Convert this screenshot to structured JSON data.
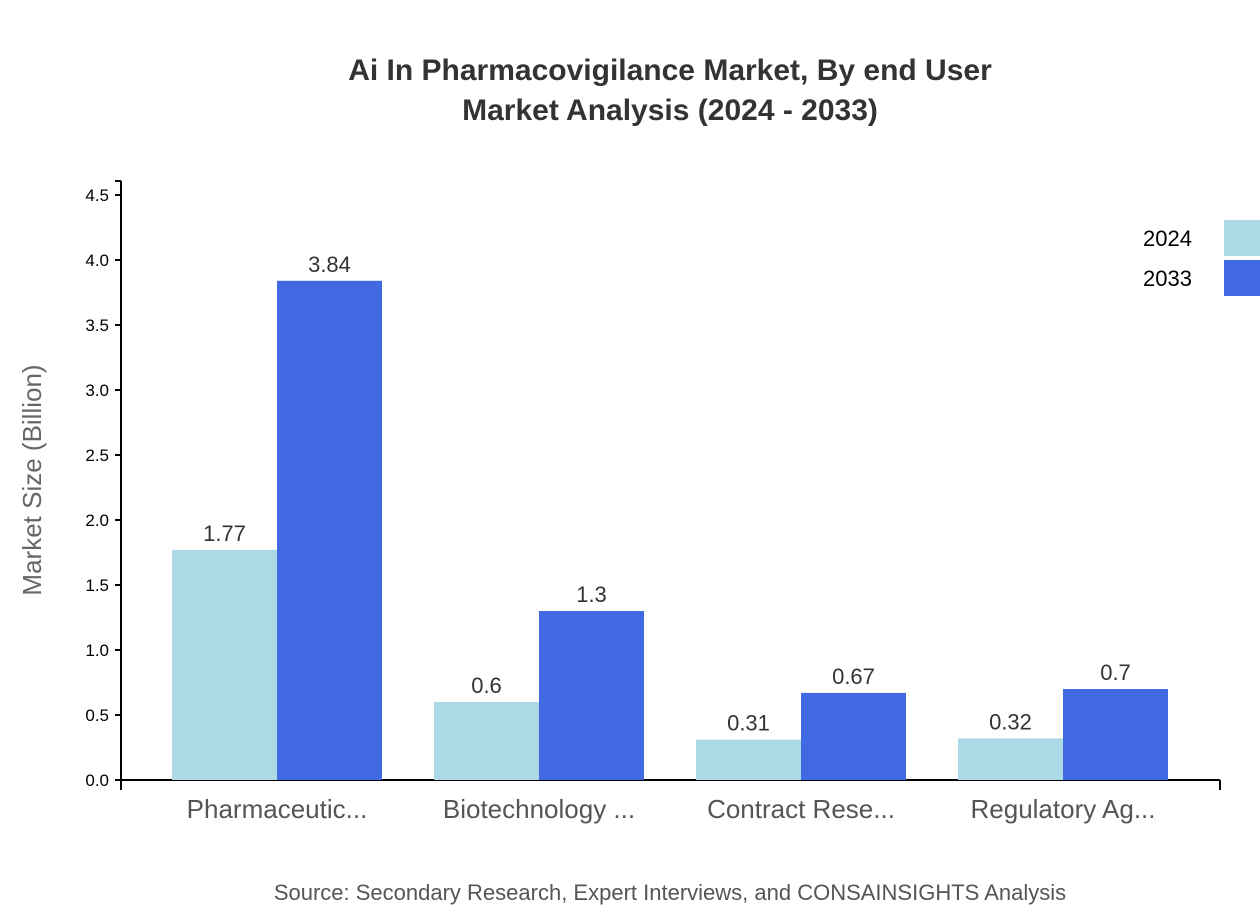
{
  "chart_data": {
    "type": "bar",
    "title": "Ai In Pharmacovigilance Market, By end User",
    "subtitle": "Market Analysis (2024 - 2033)",
    "xlabel": "",
    "ylabel": "Market Size (Billion)",
    "ylim": [
      0,
      4.5
    ],
    "yticks": [
      "0.0",
      "0.5",
      "1.0",
      "1.5",
      "2.0",
      "2.5",
      "3.0",
      "3.5",
      "4.0",
      "4.5"
    ],
    "categories": [
      "Pharmaceutic...",
      "Biotechnology ...",
      "Contract Rese...",
      "Regulatory Ag..."
    ],
    "series": [
      {
        "name": "2024",
        "color": "#add8e6",
        "values": [
          1.77,
          0.6,
          0.31,
          0.32
        ]
      },
      {
        "name": "2033",
        "color": "#4169e1",
        "values": [
          3.84,
          1.3,
          0.67,
          0.7
        ]
      }
    ],
    "legend": "top-right",
    "grid": false,
    "source": "Source: Secondary Research, Expert Interviews, and CONSAINSIGHTS Analysis"
  }
}
